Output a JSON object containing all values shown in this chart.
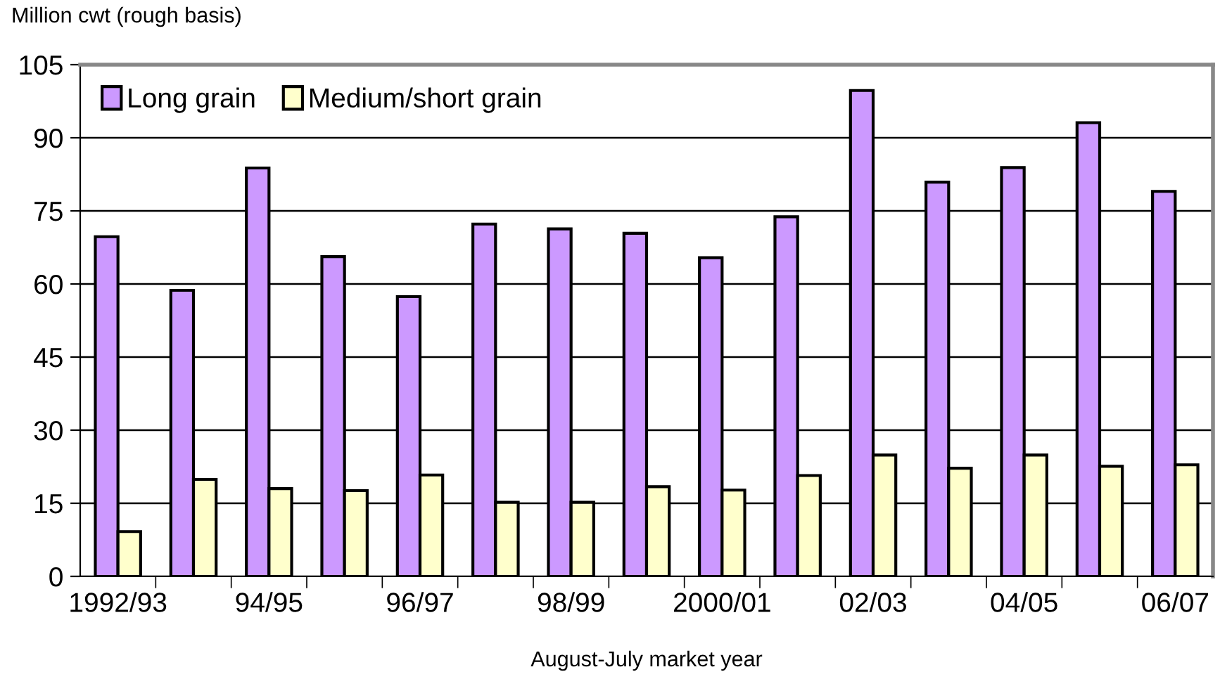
{
  "chart_data": {
    "type": "bar",
    "ylabel": "Million cwt (rough basis)",
    "xlabel": "August-July market year",
    "categories": [
      "1992/93",
      null,
      "94/95",
      null,
      "96/97",
      null,
      "98/99",
      null,
      "2000/01",
      null,
      "02/03",
      null,
      "04/05",
      null,
      "06/07"
    ],
    "series": [
      {
        "name": "Long grain",
        "color": "#cc99ff",
        "values": [
          69.7,
          58.7,
          83.8,
          65.6,
          57.4,
          72.3,
          71.3,
          70.4,
          65.4,
          73.8,
          99.7,
          80.9,
          83.9,
          93.1,
          79.0
        ]
      },
      {
        "name": "Medium/short grain",
        "color": "#ffffcc",
        "values": [
          9.2,
          19.9,
          18.0,
          17.6,
          20.8,
          15.2,
          15.2,
          18.4,
          17.7,
          20.7,
          24.9,
          22.2,
          24.9,
          22.6,
          22.9
        ]
      }
    ],
    "ylim": [
      0,
      105
    ],
    "yticks": [
      0,
      15,
      30,
      45,
      60,
      75,
      90,
      105
    ],
    "grid": "y",
    "legend": "top left"
  }
}
